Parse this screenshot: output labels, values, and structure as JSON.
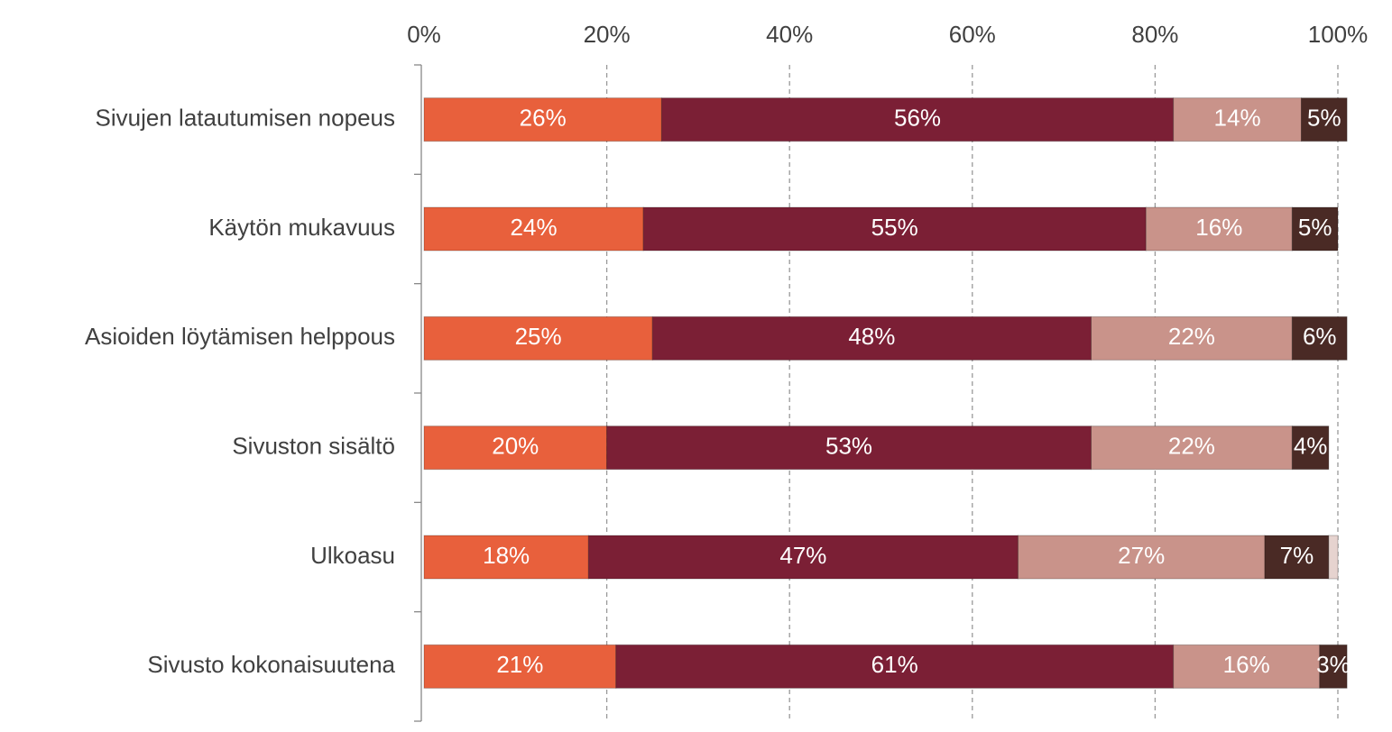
{
  "chart_data": {
    "type": "stacked_barh",
    "categories": [
      "Sivujen latautumisen nopeus",
      "Käytön mukavuus",
      "Asioiden löytämisen helppous",
      "Sivuston sisältö",
      "Ulkoasu",
      "Sivusto kokonaisuutena"
    ],
    "series": [
      {
        "color": "#e8603c",
        "values": [
          26,
          24,
          25,
          20,
          18,
          21
        ],
        "value_labels": [
          "26%",
          "24%",
          "25%",
          "20%",
          "18%",
          "21%"
        ]
      },
      {
        "color": "#7b1f35",
        "values": [
          56,
          55,
          48,
          53,
          47,
          61
        ],
        "value_labels": [
          "56%",
          "55%",
          "48%",
          "53%",
          "47%",
          "61%"
        ]
      },
      {
        "color": "#c9938a",
        "values": [
          14,
          16,
          22,
          22,
          27,
          16
        ],
        "value_labels": [
          "14%",
          "16%",
          "22%",
          "22%",
          "27%",
          "16%"
        ]
      },
      {
        "color": "#4a2a25",
        "values": [
          5,
          5,
          6,
          4,
          7,
          3
        ],
        "value_labels": [
          "5%",
          "5%",
          "6%",
          "4%",
          "7%",
          "3%"
        ]
      },
      {
        "color": "#e6d3cf",
        "values": [
          0,
          0,
          0,
          0,
          1,
          0
        ]
      }
    ],
    "xlim": [
      0,
      100
    ],
    "xticks": [
      {
        "value": 0,
        "label": "0%"
      },
      {
        "value": 20,
        "label": "20%"
      },
      {
        "value": 40,
        "label": "40%"
      },
      {
        "value": 60,
        "label": "60%"
      },
      {
        "value": 80,
        "label": "80%"
      },
      {
        "value": 100,
        "label": "100%"
      }
    ],
    "grid": true
  }
}
